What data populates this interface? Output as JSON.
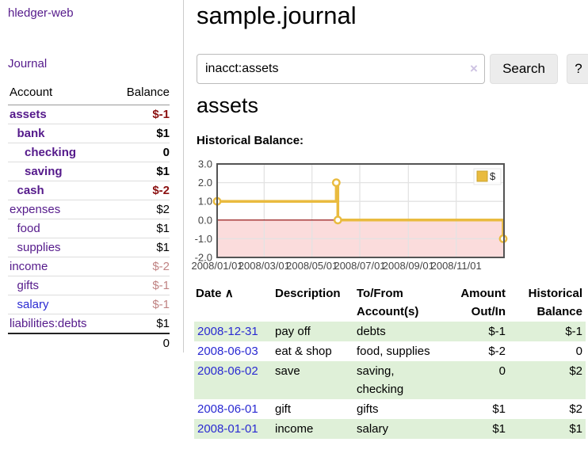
{
  "colors": {
    "link_purple": "#551a8b",
    "link_blue": "#2a2ad2",
    "bold_negative_red": "#8b1111",
    "muted_negative_red": "#c08383",
    "table_negative_red": "#8b2222",
    "stripe_green": "#dff0d8",
    "series_yellow": "#e9bb3f"
  },
  "sidebar": {
    "app_title": "hledger-web",
    "journal_link": "Journal",
    "table": {
      "col_account": "Account",
      "col_balance": "Balance",
      "rows": [
        {
          "label": "assets",
          "depth": 0,
          "bold": true,
          "label_color": "#551a8b",
          "balance": "$-1",
          "balance_color": "#8b1111"
        },
        {
          "label": "bank",
          "depth": 1,
          "bold": true,
          "label_color": "#551a8b",
          "balance": "$1",
          "balance_color": "#000000"
        },
        {
          "label": "checking",
          "depth": 2,
          "bold": true,
          "label_color": "#551a8b",
          "balance": "0",
          "balance_color": "#000000"
        },
        {
          "label": "saving",
          "depth": 2,
          "bold": true,
          "label_color": "#551a8b",
          "balance": "$1",
          "balance_color": "#000000"
        },
        {
          "label": "cash",
          "depth": 1,
          "bold": true,
          "label_color": "#551a8b",
          "balance": "$-2",
          "balance_color": "#8b1111"
        },
        {
          "label": "expenses",
          "depth": 0,
          "bold": false,
          "label_color": "#551a8b",
          "balance": "$2",
          "balance_color": "#000000"
        },
        {
          "label": "food",
          "depth": 1,
          "bold": false,
          "label_color": "#551a8b",
          "balance": "$1",
          "balance_color": "#000000"
        },
        {
          "label": "supplies",
          "depth": 1,
          "bold": false,
          "label_color": "#551a8b",
          "balance": "$1",
          "balance_color": "#000000"
        },
        {
          "label": "income",
          "depth": 0,
          "bold": false,
          "label_color": "#551a8b",
          "balance": "$-2",
          "balance_color": "#c08383"
        },
        {
          "label": "gifts",
          "depth": 1,
          "bold": false,
          "label_color": "#551a8b",
          "balance": "$-1",
          "balance_color": "#c08383"
        },
        {
          "label": "salary",
          "depth": 1,
          "bold": false,
          "label_color": "#2a2ad2",
          "balance": "$-1",
          "balance_color": "#c08383"
        },
        {
          "label": "liabilities:debts",
          "depth": 0,
          "bold": false,
          "label_color": "#551a8b",
          "balance": "$1",
          "balance_color": "#000000"
        }
      ],
      "total": "0"
    }
  },
  "header": {
    "title": "sample.journal"
  },
  "search": {
    "value": "inacct:assets",
    "placeholder": "",
    "clear_icon": "×",
    "button_label": "Search",
    "help_label": "?"
  },
  "account_page": {
    "heading": "assets",
    "chart_label": "Historical Balance:"
  },
  "chart_data": {
    "type": "line",
    "step": true,
    "title": "Historical Balance",
    "series": [
      {
        "name": "$",
        "color": "#e9bb3f",
        "points": [
          [
            "2008-01-01",
            1
          ],
          [
            "2008-06-01",
            2
          ],
          [
            "2008-06-03",
            0
          ],
          [
            "2008-12-31",
            -1
          ]
        ]
      }
    ],
    "x_range": [
      "2008-01-01",
      "2009-01-01"
    ],
    "x_tick_dates": [
      "2008-01-01",
      "2008-03-01",
      "2008-05-01",
      "2008-07-01",
      "2008-09-01",
      "2008-11-01"
    ],
    "x_tick_labels": [
      "2008/01/01",
      "2008/03/01",
      "2008/05/01",
      "2008/07/01",
      "2008/09/01",
      "2008/11/01"
    ],
    "y_ticks": [
      3.0,
      2.0,
      1.0,
      0.0,
      -1.0,
      -2.0
    ],
    "ylim": [
      -2,
      3
    ],
    "grid": true,
    "legend_position": "top-right",
    "negative_region_color": "#fbdcdc",
    "zero_line_color": "#8b0000",
    "grid_color": "#e3e3e3",
    "border_color": "#545454",
    "tick_label_color": "#444444"
  },
  "register": {
    "columns": {
      "date": "Date",
      "description": "Description",
      "accounts": "To/From Account(s)",
      "amount": "Amount Out/In",
      "balance": "Historical Balance"
    },
    "sort_icon": "∧",
    "rows": [
      {
        "date": "2008-12-31",
        "description": "pay off",
        "accounts": "debts",
        "amount": "$-1",
        "balance": "$-1"
      },
      {
        "date": "2008-06-03",
        "description": "eat & shop",
        "accounts": "food, supplies",
        "amount": "$-2",
        "balance": "0"
      },
      {
        "date": "2008-06-02",
        "description": "save",
        "accounts": "saving, checking",
        "amount": "0",
        "balance": "$2"
      },
      {
        "date": "2008-06-01",
        "description": "gift",
        "accounts": "gifts",
        "amount": "$1",
        "balance": "$2"
      },
      {
        "date": "2008-01-01",
        "description": "income",
        "accounts": "salary",
        "amount": "$1",
        "balance": "$1"
      }
    ]
  }
}
